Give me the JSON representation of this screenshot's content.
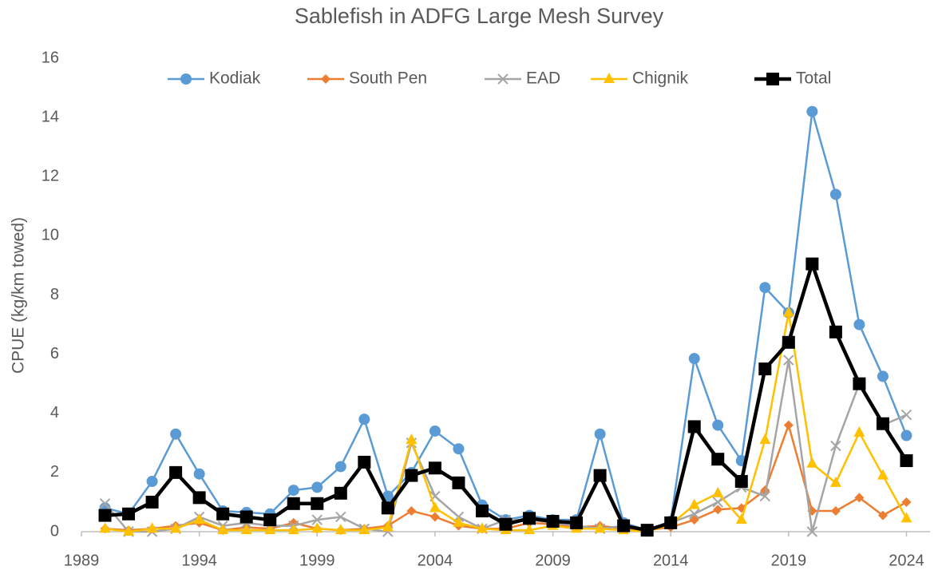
{
  "chart_data": {
    "type": "line",
    "title": "Sablefish in ADFG Large Mesh Survey",
    "y_label": "CPUE (kg/km towed)",
    "x": [
      1990,
      1991,
      1992,
      1993,
      1994,
      1995,
      1996,
      1997,
      1998,
      1999,
      2000,
      2001,
      2002,
      2003,
      2004,
      2005,
      2006,
      2007,
      2008,
      2009,
      2010,
      2011,
      2012,
      2013,
      2014,
      2015,
      2016,
      2017,
      2018,
      2019,
      2020,
      2021,
      2022,
      2023,
      2024
    ],
    "xlim": [
      1989,
      2025
    ],
    "xticks": [
      1989,
      1994,
      1999,
      2004,
      2009,
      2014,
      2019,
      2024
    ],
    "ylim": [
      0,
      16
    ],
    "yticks": [
      0,
      2,
      4,
      6,
      8,
      10,
      12,
      14,
      16
    ],
    "grid": false,
    "legend": "top",
    "series": [
      {
        "name": "Kodiak",
        "color": "#5b9bd5",
        "marker": "circle",
        "width": 2.5,
        "values": [
          0.8,
          0.6,
          1.7,
          3.3,
          1.95,
          0.7,
          0.65,
          0.6,
          1.4,
          1.5,
          2.2,
          3.8,
          1.2,
          2.0,
          3.4,
          2.8,
          0.9,
          0.4,
          0.55,
          0.4,
          0.4,
          3.3,
          0.3,
          0.05,
          0.35,
          5.85,
          3.6,
          2.4,
          8.25,
          7.4,
          14.2,
          11.4,
          7.0,
          5.25,
          3.25
        ]
      },
      {
        "name": "South Pen",
        "color": "#ed7d31",
        "marker": "diamond",
        "width": 2.5,
        "values": [
          0.1,
          0.05,
          0.1,
          0.2,
          0.3,
          0.05,
          0.15,
          0.1,
          0.3,
          0.1,
          0.05,
          0.1,
          0.2,
          0.7,
          0.5,
          0.2,
          0.1,
          0.1,
          0.3,
          0.25,
          0.15,
          0.2,
          0.1,
          0.05,
          0.15,
          0.4,
          0.75,
          0.8,
          1.4,
          3.6,
          0.7,
          0.7,
          1.15,
          0.55,
          1.0
        ]
      },
      {
        "name": "EAD",
        "color": "#a5a5a5",
        "marker": "x",
        "width": 2.5,
        "values": [
          0.95,
          0,
          0,
          0.1,
          0.5,
          0.2,
          0.3,
          0.2,
          0.2,
          0.4,
          0.5,
          0.1,
          0,
          3.0,
          1.2,
          0.5,
          0.1,
          0.4,
          0.4,
          0.3,
          0.2,
          0.1,
          0.2,
          0.05,
          0.3,
          0.6,
          1.0,
          1.5,
          1.2,
          5.8,
          0,
          2.9,
          5.0,
          3.6,
          3.95
        ]
      },
      {
        "name": "Chignik",
        "color": "#ffc000",
        "marker": "triangle",
        "width": 2.5,
        "values": [
          0.1,
          0,
          0.1,
          0.1,
          0.4,
          0.05,
          0.05,
          0.05,
          0.05,
          0.1,
          0.05,
          0.05,
          0.15,
          3.1,
          0.8,
          0.3,
          0.1,
          0.05,
          0.05,
          0.2,
          0.1,
          0.1,
          0.05,
          0,
          0.25,
          0.9,
          1.3,
          0.4,
          3.1,
          7.4,
          2.3,
          1.65,
          3.35,
          1.9,
          0.45
        ]
      },
      {
        "name": "Total",
        "color": "#000000",
        "marker": "square",
        "width": 4.5,
        "values": [
          0.55,
          0.6,
          1.0,
          2.0,
          1.15,
          0.6,
          0.5,
          0.4,
          0.95,
          0.95,
          1.3,
          2.35,
          0.8,
          1.9,
          2.15,
          1.65,
          0.7,
          0.25,
          0.45,
          0.35,
          0.3,
          1.9,
          0.2,
          0.05,
          0.3,
          3.55,
          2.45,
          1.7,
          5.5,
          6.4,
          9.05,
          6.75,
          5.0,
          3.65,
          2.4
        ]
      }
    ]
  }
}
